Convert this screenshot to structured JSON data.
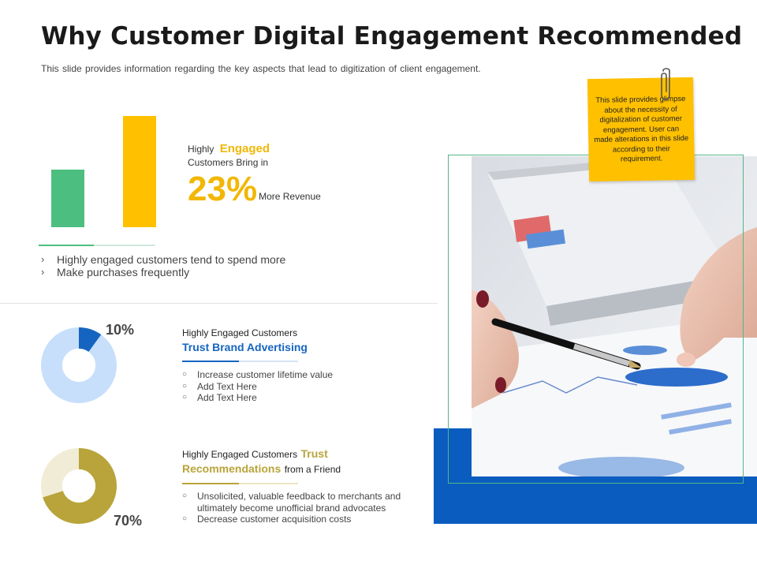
{
  "header": {
    "title": "Why Customer Digital Engagement Recommended",
    "subtitle": "This slide provides information regarding the key aspects that lead to digitization of client engagement."
  },
  "engaged": {
    "line1_prefix": "Highly",
    "line1_accent": "Engaged",
    "line2": "Customers Bring in",
    "stat": "23%",
    "stat_label": "More Revenue"
  },
  "chart_data": {
    "type": "bar",
    "categories": [
      "",
      ""
    ],
    "values": [
      35,
      67
    ],
    "ylim": [
      0,
      100
    ],
    "colors": [
      "#4cbf80",
      "#ffc000"
    ]
  },
  "arrow_points": [
    "Highly engaged customers tend to spend more",
    "Make purchases frequently"
  ],
  "section1": {
    "percent_label": "10%",
    "percent": 10,
    "lead": "Highly Engaged Customers",
    "accent": "Trust Brand Advertising",
    "points": [
      "Increase customer lifetime value",
      "Add Text Here",
      "Add Text Here"
    ],
    "colors": {
      "accent": "#1565c0",
      "track": "#c7dffa"
    }
  },
  "section2": {
    "percent_label": "70%",
    "percent": 70,
    "lead": "Highly Engaged Customers",
    "accent_word1": "Trust",
    "accent_word2": "Recommendations",
    "tail": "from a Friend",
    "points": [
      "Unsolicited, valuable feedback to merchants and ultimately become unofficial brand advocates",
      "Decrease customer acquisition costs"
    ],
    "colors": {
      "accent": "#b8a43a",
      "track": "#f1ecd6"
    }
  },
  "note": {
    "text": "This slide provides glimpse about the necessity of digitalization of customer engagement. User can made alterations in this slide according to their requirement."
  },
  "icons": {
    "arrow_marker": "›",
    "circle_marker": "○",
    "paperclip": "paperclip-icon"
  }
}
